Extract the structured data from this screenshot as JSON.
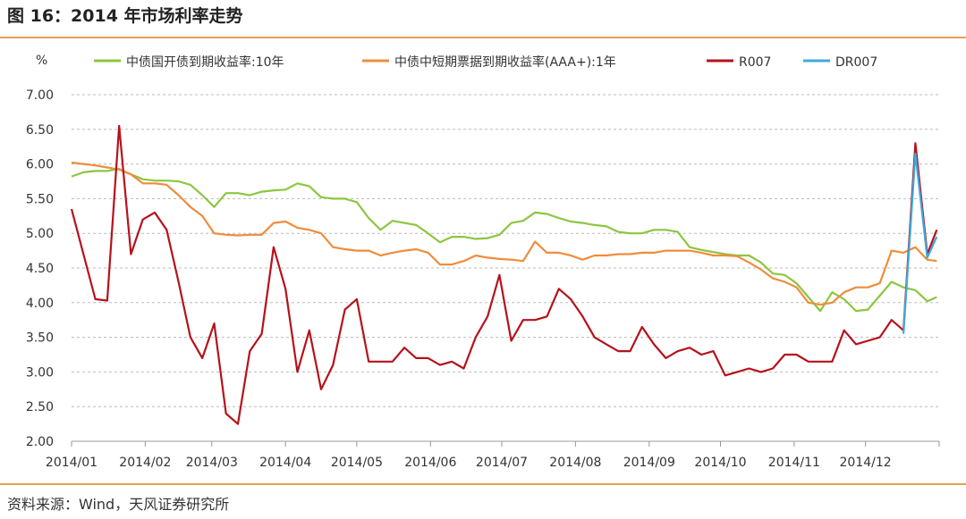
{
  "chart_data": {
    "type": "line",
    "title": "图 16：2014 年市场利率走势",
    "y_label": "%",
    "source": "资料来源：Wind，天风证券研究所",
    "xlim": [
      0,
      365
    ],
    "xticks": [
      {
        "value": 0,
        "label": "2014/01"
      },
      {
        "value": 31,
        "label": "2014/02"
      },
      {
        "value": 59,
        "label": "2014/03"
      },
      {
        "value": 90,
        "label": "2014/04"
      },
      {
        "value": 120,
        "label": "2014/05"
      },
      {
        "value": 151,
        "label": "2014/06"
      },
      {
        "value": 181,
        "label": "2014/07"
      },
      {
        "value": 212,
        "label": "2014/08"
      },
      {
        "value": 243,
        "label": "2014/09"
      },
      {
        "value": 273,
        "label": "2014/10"
      },
      {
        "value": 304,
        "label": "2014/11"
      },
      {
        "value": 334,
        "label": "2014/12"
      }
    ],
    "ylim": [
      2,
      7
    ],
    "yticks": [
      {
        "value": 2,
        "label": "2.00"
      },
      {
        "value": 2.5,
        "label": "2.50"
      },
      {
        "value": 3,
        "label": "3.00"
      },
      {
        "value": 3.5,
        "label": "3.50"
      },
      {
        "value": 4,
        "label": "4.00"
      },
      {
        "value": 4.5,
        "label": "4.50"
      },
      {
        "value": 5,
        "label": "5.00"
      },
      {
        "value": 5.5,
        "label": "5.50"
      },
      {
        "value": 6,
        "label": "6.00"
      },
      {
        "value": 6.5,
        "label": "6.50"
      },
      {
        "value": 7,
        "label": "7.00"
      }
    ],
    "grid": true,
    "x": [
      0,
      5,
      10,
      15,
      20,
      25,
      30,
      35,
      40,
      45,
      50,
      55,
      60,
      65,
      70,
      75,
      80,
      85,
      90,
      95,
      100,
      105,
      110,
      115,
      120,
      125,
      130,
      135,
      140,
      145,
      150,
      155,
      160,
      165,
      170,
      175,
      180,
      185,
      190,
      195,
      200,
      205,
      210,
      215,
      220,
      225,
      230,
      235,
      240,
      245,
      250,
      255,
      260,
      265,
      270,
      275,
      280,
      285,
      290,
      295,
      300,
      305,
      310,
      315,
      320,
      325,
      330,
      335,
      340,
      345,
      350,
      355,
      360,
      364
    ],
    "series": [
      {
        "name": "中债国开债到期收益率:10年",
        "color": "#8cc63f",
        "values": [
          5.82,
          5.88,
          5.9,
          5.9,
          5.93,
          5.85,
          5.78,
          5.76,
          5.76,
          5.75,
          5.7,
          5.55,
          5.38,
          5.58,
          5.58,
          5.55,
          5.6,
          5.62,
          5.63,
          5.72,
          5.68,
          5.52,
          5.5,
          5.5,
          5.45,
          5.22,
          5.05,
          5.18,
          5.15,
          5.12,
          5.0,
          4.87,
          4.95,
          4.95,
          4.92,
          4.93,
          4.98,
          5.15,
          5.18,
          5.3,
          5.28,
          5.22,
          5.17,
          5.15,
          5.12,
          5.1,
          5.02,
          5.0,
          5.0,
          5.05,
          5.05,
          5.02,
          4.8,
          4.76,
          4.73,
          4.7,
          4.68,
          4.68,
          4.58,
          4.42,
          4.4,
          4.28,
          4.08,
          3.88,
          4.15,
          4.05,
          3.88,
          3.9,
          4.1,
          4.3,
          4.22,
          4.18,
          4.02,
          4.08
        ]
      },
      {
        "name": "中债中短期票据到期收益率(AAA+):1年",
        "color": "#f08c3c",
        "values": [
          6.02,
          6.0,
          5.98,
          5.95,
          5.92,
          5.85,
          5.72,
          5.72,
          5.7,
          5.55,
          5.38,
          5.25,
          5.0,
          4.98,
          4.97,
          4.98,
          4.98,
          5.15,
          5.17,
          5.08,
          5.05,
          5.0,
          4.8,
          4.77,
          4.75,
          4.75,
          4.68,
          4.72,
          4.75,
          4.77,
          4.72,
          4.55,
          4.55,
          4.6,
          4.68,
          4.65,
          4.63,
          4.62,
          4.6,
          4.88,
          4.72,
          4.72,
          4.68,
          4.62,
          4.68,
          4.68,
          4.7,
          4.7,
          4.72,
          4.72,
          4.75,
          4.75,
          4.75,
          4.72,
          4.68,
          4.68,
          4.67,
          4.58,
          4.48,
          4.35,
          4.3,
          4.22,
          4.0,
          3.97,
          4.0,
          4.15,
          4.22,
          4.22,
          4.28,
          4.75,
          4.72,
          4.8,
          4.62,
          4.6
        ]
      },
      {
        "name": "R007",
        "color": "#b5121b",
        "values": [
          5.35,
          4.7,
          4.05,
          4.03,
          6.55,
          4.7,
          5.2,
          5.3,
          5.05,
          4.3,
          3.5,
          3.2,
          3.7,
          2.4,
          2.25,
          3.3,
          3.55,
          4.8,
          4.2,
          3.0,
          3.6,
          2.75,
          3.1,
          3.9,
          4.05,
          3.15,
          3.15,
          3.15,
          3.35,
          3.2,
          3.2,
          3.1,
          3.15,
          3.05,
          3.5,
          3.8,
          4.4,
          3.45,
          3.75,
          3.75,
          3.8,
          4.2,
          4.05,
          3.8,
          3.5,
          3.4,
          3.3,
          3.3,
          3.65,
          3.4,
          3.2,
          3.3,
          3.35,
          3.25,
          3.3,
          2.95,
          3.0,
          3.05,
          3.0,
          3.05,
          3.25,
          3.25,
          3.15,
          3.15,
          3.15,
          3.6,
          3.4,
          3.45,
          3.5,
          3.75,
          3.6,
          6.3,
          4.7,
          5.05
        ]
      },
      {
        "name": "DR007",
        "color": "#3fa9dc",
        "values": [
          null,
          null,
          null,
          null,
          null,
          null,
          null,
          null,
          null,
          null,
          null,
          null,
          null,
          null,
          null,
          null,
          null,
          null,
          null,
          null,
          null,
          null,
          null,
          null,
          null,
          null,
          null,
          null,
          null,
          null,
          null,
          null,
          null,
          null,
          null,
          null,
          null,
          null,
          null,
          null,
          null,
          null,
          null,
          null,
          null,
          null,
          null,
          null,
          null,
          null,
          null,
          null,
          null,
          null,
          null,
          null,
          null,
          null,
          null,
          null,
          null,
          null,
          null,
          null,
          null,
          null,
          null,
          null,
          null,
          null,
          3.55,
          6.15,
          4.65,
          4.95
        ]
      }
    ]
  }
}
